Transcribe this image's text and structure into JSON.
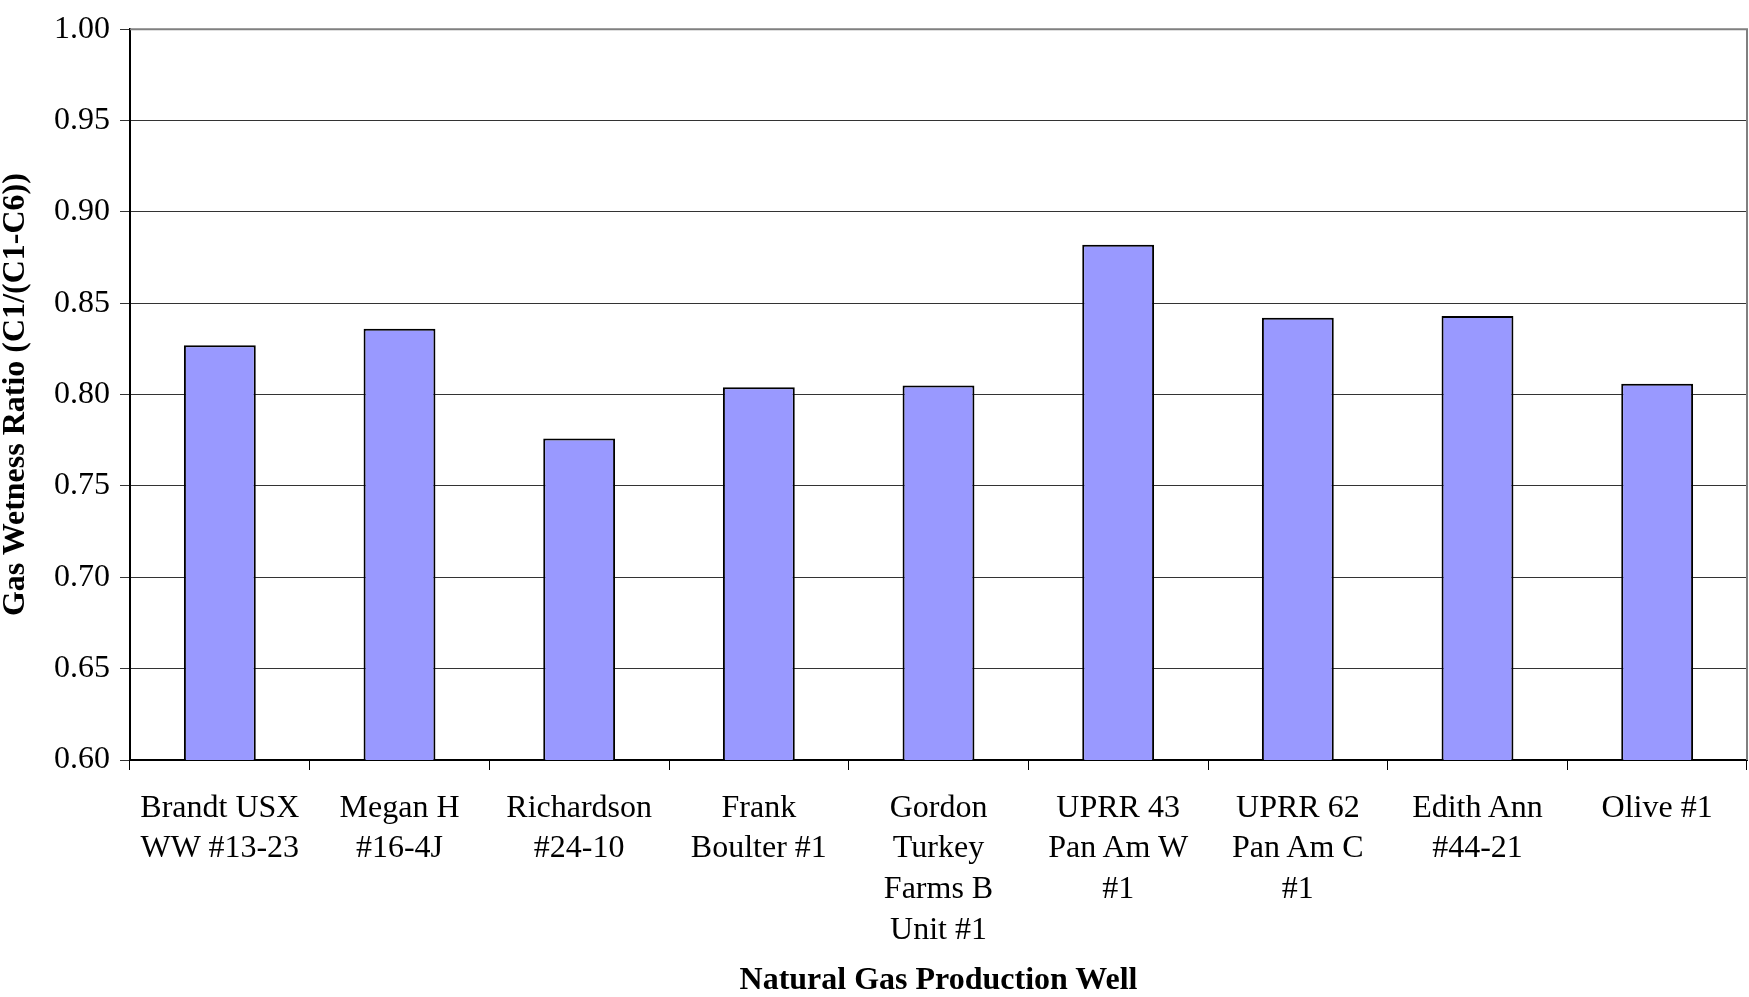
{
  "chart_data": {
    "type": "bar",
    "xlabel": "Natural Gas Production Well",
    "ylabel": "Gas Wetness Ratio (C1/(C1-C6))",
    "categories": [
      "Brandt USX WW #13-23",
      "Megan H #16-4J",
      "Richardson #24-10",
      "Frank Boulter #1",
      "Gordon Turkey Farms B Unit #1",
      "UPRR 43 Pan Am W #1",
      "UPRR 62 Pan Am C #1",
      "Edith Ann #44-21",
      "Olive #1"
    ],
    "values": [
      0.827,
      0.836,
      0.776,
      0.804,
      0.805,
      0.882,
      0.842,
      0.843,
      0.806
    ],
    "color": "#9999ff",
    "ylim": [
      0.6,
      1.0
    ],
    "yticks": [
      {
        "value": 0.6,
        "label": "0.60"
      },
      0.65,
      {
        "value": 0.7,
        "label": "0.70"
      },
      0.75,
      {
        "value": 0.8,
        "label": "0.80"
      },
      0.85,
      {
        "value": 0.9,
        "label": "0.90"
      },
      0.95,
      {
        "value": 1.0,
        "label": "1.00"
      }
    ],
    "grid": "y"
  }
}
